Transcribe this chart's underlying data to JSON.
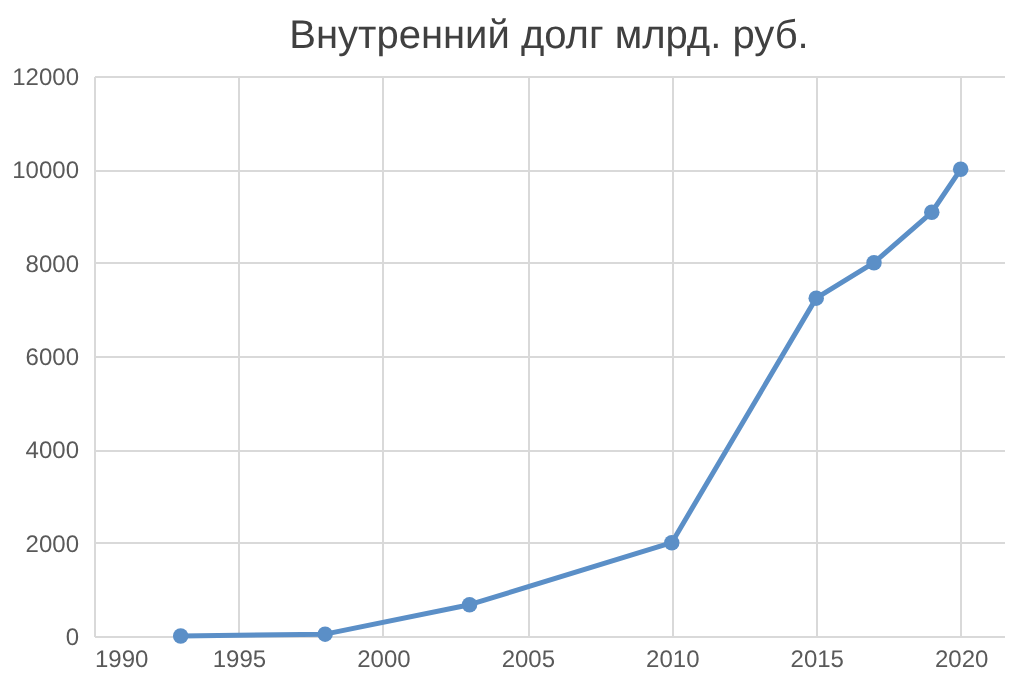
{
  "chart_data": {
    "type": "line",
    "title": "Внутренний долг млрд. руб.",
    "x": [
      1993,
      1998,
      2003,
      2010,
      2015,
      2017,
      2019,
      2020
    ],
    "series": [
      {
        "color": "#5b8fc7",
        "values": [
          0,
          40,
          670,
          2000,
          7240,
          8000,
          9080,
          10000
        ]
      }
    ],
    "xlim": [
      1990,
      2021.5
    ],
    "xticks": [
      1990,
      1995,
      2000,
      2005,
      2010,
      2015,
      2020
    ],
    "ylim": [
      0,
      12000
    ],
    "yticks": [
      0,
      2000,
      4000,
      6000,
      8000,
      10000,
      12000
    ],
    "grid": true,
    "marker": "circle",
    "line_style": "solid"
  }
}
